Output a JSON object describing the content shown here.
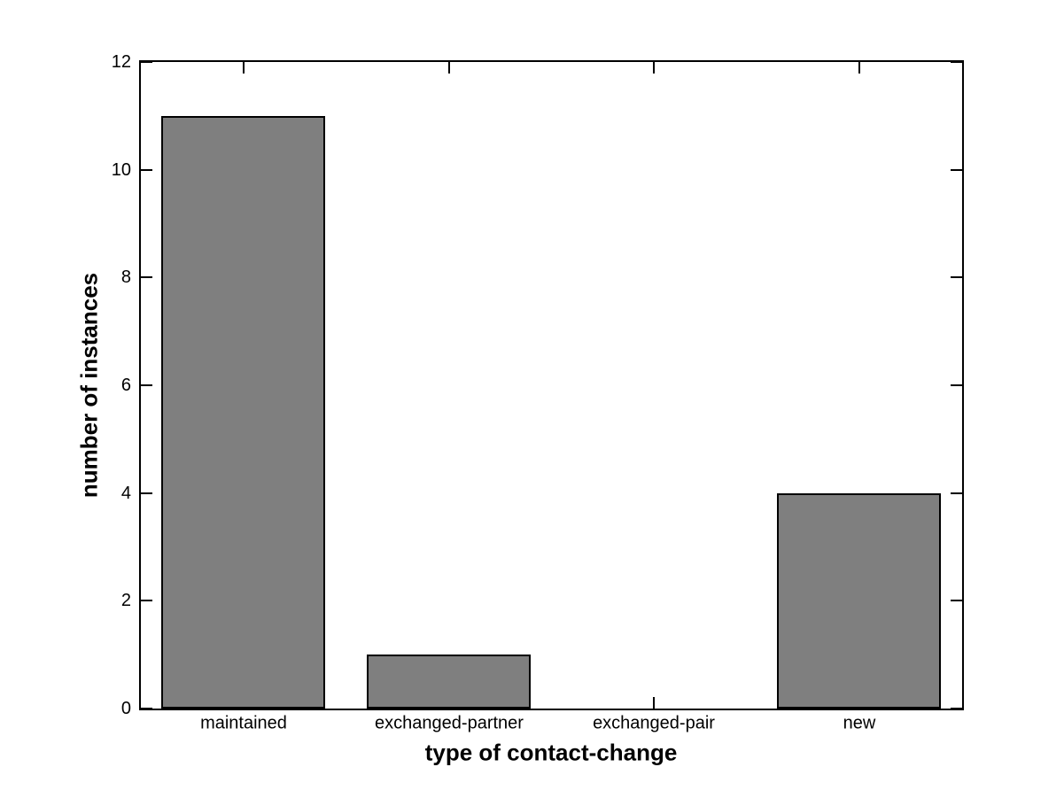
{
  "figure": {
    "background": "#ffffff",
    "axis_color": "#000000"
  },
  "chart_data": {
    "type": "bar",
    "categories": [
      "maintained",
      "exchanged-partner",
      "exchanged-pair",
      "new"
    ],
    "values": [
      11,
      1,
      0,
      4
    ],
    "title": "",
    "xlabel": "type of contact-change",
    "ylabel": "number of instances",
    "ylim": [
      0,
      12
    ],
    "yticks": [
      0,
      2,
      4,
      6,
      8,
      10,
      12
    ],
    "bar_color": "#7f7f7f",
    "bar_edge_color": "#000000",
    "bar_width_fraction": 0.8,
    "grid": false,
    "legend_position": "none",
    "tick_direction": "in"
  }
}
